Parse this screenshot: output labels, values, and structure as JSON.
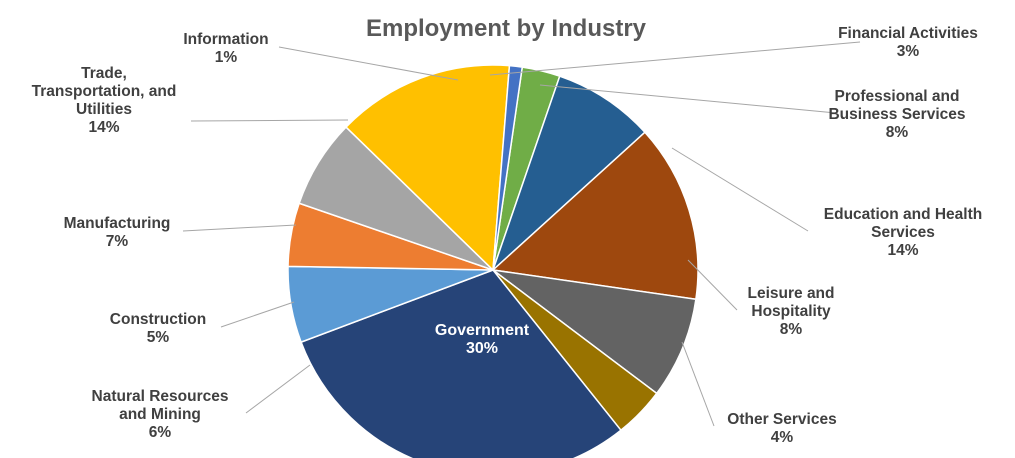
{
  "chart_data": {
    "type": "pie",
    "title": "Employment by Industry",
    "slices": [
      {
        "name": "Financial Activities",
        "value": 3,
        "label": "3%",
        "color": "#70ad47"
      },
      {
        "name": "Professional and Business Services",
        "value": 8,
        "label": "8%",
        "color": "#255e91"
      },
      {
        "name": "Education and Health Services",
        "value": 14,
        "label": "14%",
        "color": "#9e480e"
      },
      {
        "name": "Leisure and Hospitality",
        "value": 8,
        "label": "8%",
        "color": "#636363"
      },
      {
        "name": "Other Services",
        "value": 4,
        "label": "4%",
        "color": "#997300"
      },
      {
        "name": "Government",
        "value": 30,
        "label": "30%",
        "color": "#264478"
      },
      {
        "name": "Natural Resources and Mining",
        "value": 6,
        "label": "6%",
        "color": "#5b9bd5"
      },
      {
        "name": "Construction",
        "value": 5,
        "label": "5%",
        "color": "#ed7d31"
      },
      {
        "name": "Manufacturing",
        "value": 7,
        "label": "7%",
        "color": "#a5a5a5"
      },
      {
        "name": "Trade, Transportation, and Utilities",
        "value": 14,
        "label": "14%",
        "color": "#ffc000"
      },
      {
        "name": "Information",
        "value": 1,
        "label": "1%",
        "color": "#4472c4"
      }
    ],
    "label_text": [
      [
        "Financial Activities",
        "3%"
      ],
      [
        "Professional and",
        "Business Services",
        "8%"
      ],
      [
        "Education and Health",
        "Services",
        "14%"
      ],
      [
        "Leisure and",
        "Hospitality",
        "8%"
      ],
      [
        "Other Services",
        "4%"
      ],
      [
        "Government",
        "30%"
      ],
      [
        "Natural Resources",
        "and Mining",
        "6%"
      ],
      [
        "Construction",
        "5%"
      ],
      [
        "Manufacturing",
        "7%"
      ],
      [
        "Trade,",
        "Transportation, and",
        "Utilities",
        "14%"
      ],
      [
        "Information",
        "1%"
      ]
    ],
    "legend": "none"
  }
}
